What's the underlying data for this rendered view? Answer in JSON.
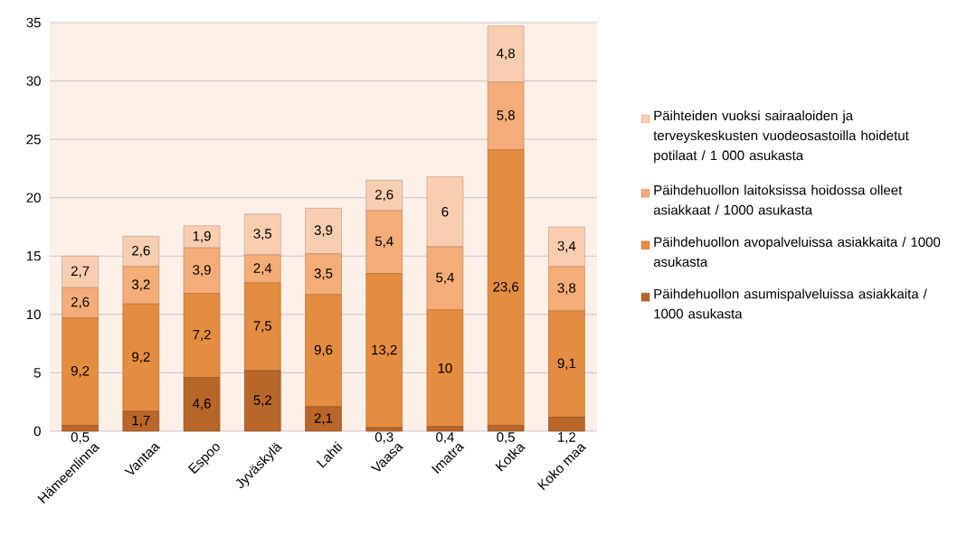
{
  "chart_data": {
    "type": "bar",
    "stacked": true,
    "categories": [
      "Hämeenlinna",
      "Vantaa",
      "Espoo",
      "Jyväskylä",
      "Lahti",
      "Vaasa",
      "Imatra",
      "Kotka",
      "Koko maa"
    ],
    "series": [
      {
        "name": "Päihdehuollon asumispalveluissa asiakkaita / 1000 asukasta",
        "color": "#b9662a",
        "values": [
          0.5,
          1.7,
          4.6,
          5.2,
          2.1,
          0.3,
          0.4,
          0.5,
          1.2
        ],
        "value_labels": [
          "0,5",
          "1,7",
          "4,6",
          "5,2",
          "2,1",
          "0,3",
          "0,4",
          "0,5",
          "1,2"
        ]
      },
      {
        "name": "Päihdehuollon avopalveluissa asiakkaita / 1000 asukasta",
        "color": "#e48c40",
        "values": [
          9.2,
          9.2,
          7.2,
          7.5,
          9.6,
          13.2,
          10,
          23.6,
          9.1
        ],
        "value_labels": [
          "9,2",
          "9,2",
          "7,2",
          "7,5",
          "9,6",
          "13,2",
          "10",
          "23,6",
          "9,1"
        ]
      },
      {
        "name": "Päihdehuollon laitoksissa hoidossa olleet asiakkaat / 1000 asukasta",
        "color": "#f4ad78",
        "values": [
          2.6,
          3.2,
          3.9,
          2.4,
          3.5,
          5.4,
          5.4,
          5.8,
          3.8
        ],
        "value_labels": [
          "2,6",
          "3,2",
          "3,9",
          "2,4",
          "3,5",
          "5,4",
          "5,4",
          "5,8",
          "3,8"
        ]
      },
      {
        "name": "Päihteiden vuoksi sairaaloiden ja terveyskeskusten vuodeosastoilla hoidetut potilaat / 1 000 asukasta",
        "color": "#f9cdb0",
        "values": [
          2.7,
          2.6,
          1.9,
          3.5,
          3.9,
          2.6,
          6,
          4.8,
          3.4
        ],
        "value_labels": [
          "2,7",
          "2,6",
          "1,9",
          "3,5",
          "3,9",
          "2,6",
          "6",
          "4,8",
          "3,4"
        ]
      }
    ],
    "ylim": [
      0,
      35
    ],
    "yticks": [
      0,
      5,
      10,
      15,
      20,
      25,
      30,
      35
    ],
    "grid": "y",
    "legend": "right"
  }
}
